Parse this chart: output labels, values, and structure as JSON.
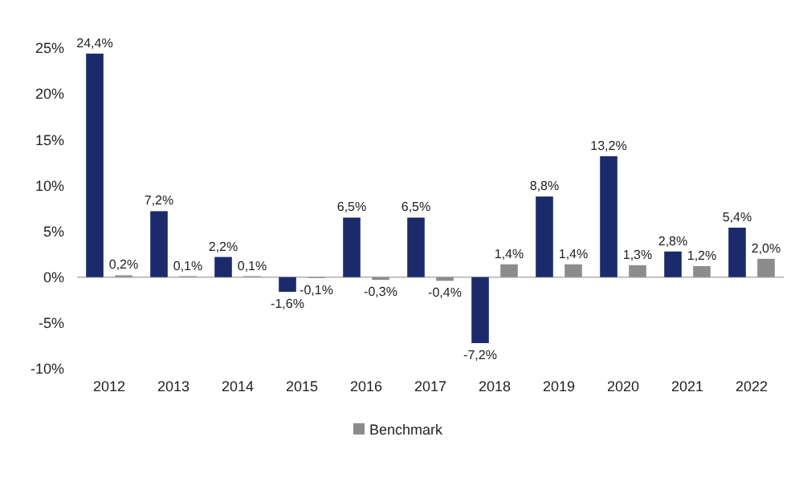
{
  "chart_data": {
    "type": "bar",
    "categories": [
      "2012",
      "2013",
      "2014",
      "2015",
      "2016",
      "2017",
      "2018",
      "2019",
      "2020",
      "2021",
      "2022"
    ],
    "series": [
      {
        "color": "#1b2a6b",
        "values": [
          24.4,
          7.2,
          2.2,
          -1.6,
          6.5,
          6.5,
          -7.2,
          8.8,
          13.2,
          2.8,
          5.4
        ],
        "value_labels": [
          "24,4%",
          "7,2%",
          "2,2%",
          "-1,6%",
          "6,5%",
          "6,5%",
          "-7,2%",
          "8,8%",
          "13,2%",
          "2,8%",
          "5,4%"
        ]
      },
      {
        "name": "Benchmark",
        "color": "#8c8c8c",
        "values": [
          0.2,
          0.1,
          0.1,
          -0.1,
          -0.3,
          -0.4,
          1.4,
          1.4,
          1.3,
          1.2,
          2.0
        ],
        "value_labels": [
          "0,2%",
          "0,1%",
          "0,1%",
          "-0,1%",
          "-0,3%",
          "-0,4%",
          "1,4%",
          "1,4%",
          "1,3%",
          "1,2%",
          "2,0%"
        ]
      }
    ],
    "ylim": [
      -10,
      25
    ],
    "yticks": [
      {
        "value": -10,
        "label": "-10%"
      },
      {
        "value": -5,
        "label": "-5%"
      },
      {
        "value": 0,
        "label": "0%"
      },
      {
        "value": 5,
        "label": "5%"
      },
      {
        "value": 10,
        "label": "10%"
      },
      {
        "value": 15,
        "label": "15%"
      },
      {
        "value": 20,
        "label": "20%"
      },
      {
        "value": 25,
        "label": "25%"
      }
    ],
    "legend": "bottom"
  }
}
